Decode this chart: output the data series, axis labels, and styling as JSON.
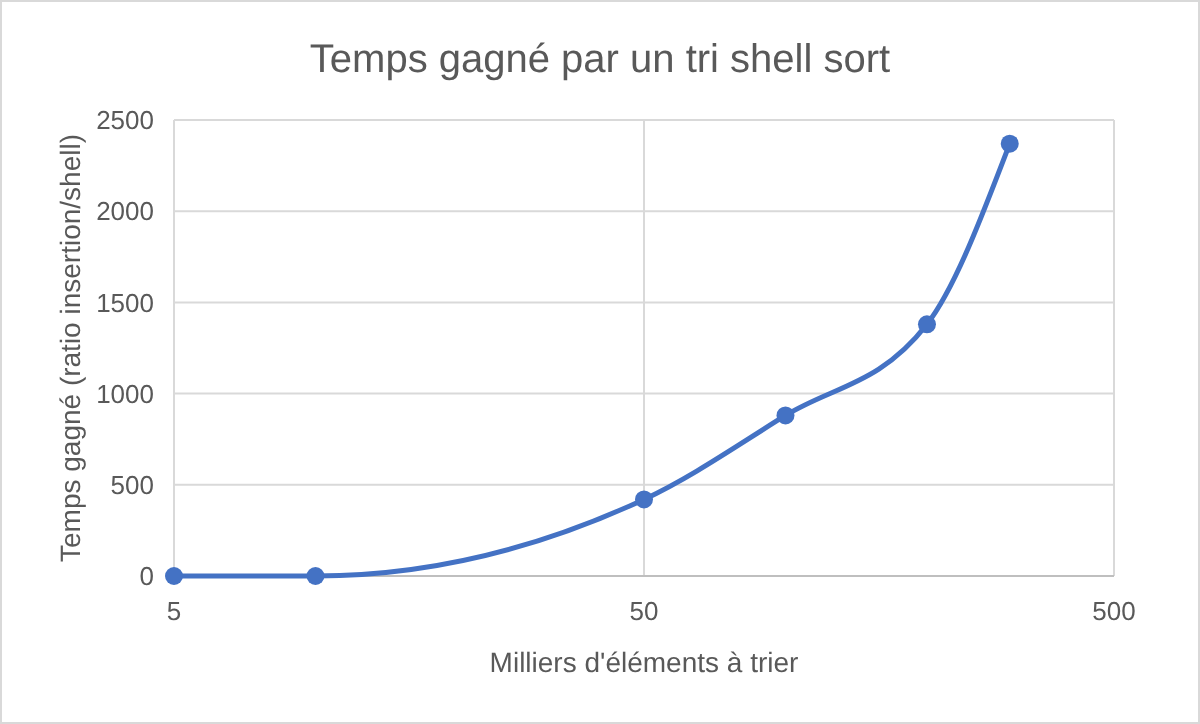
{
  "chart_data": {
    "type": "line",
    "title": "Temps gagné par un tri shell sort",
    "xlabel": "Milliers d'éléments à trier",
    "ylabel": "Temps gagné (ratio insertion/shell)",
    "x": [
      5,
      10,
      50,
      100,
      200,
      300
    ],
    "series": [
      {
        "color": "#4472c4",
        "values": [
          0,
          0,
          420,
          880,
          1380,
          2370
        ]
      }
    ],
    "xlim": [
      5,
      500
    ],
    "xticks": [
      5,
      50,
      500
    ],
    "ylim": [
      0,
      2500
    ],
    "yticks": [
      0,
      500,
      1000,
      1500,
      2000,
      2500
    ],
    "log": "x",
    "grid": true,
    "marker": "circle",
    "line_style": "solid"
  }
}
